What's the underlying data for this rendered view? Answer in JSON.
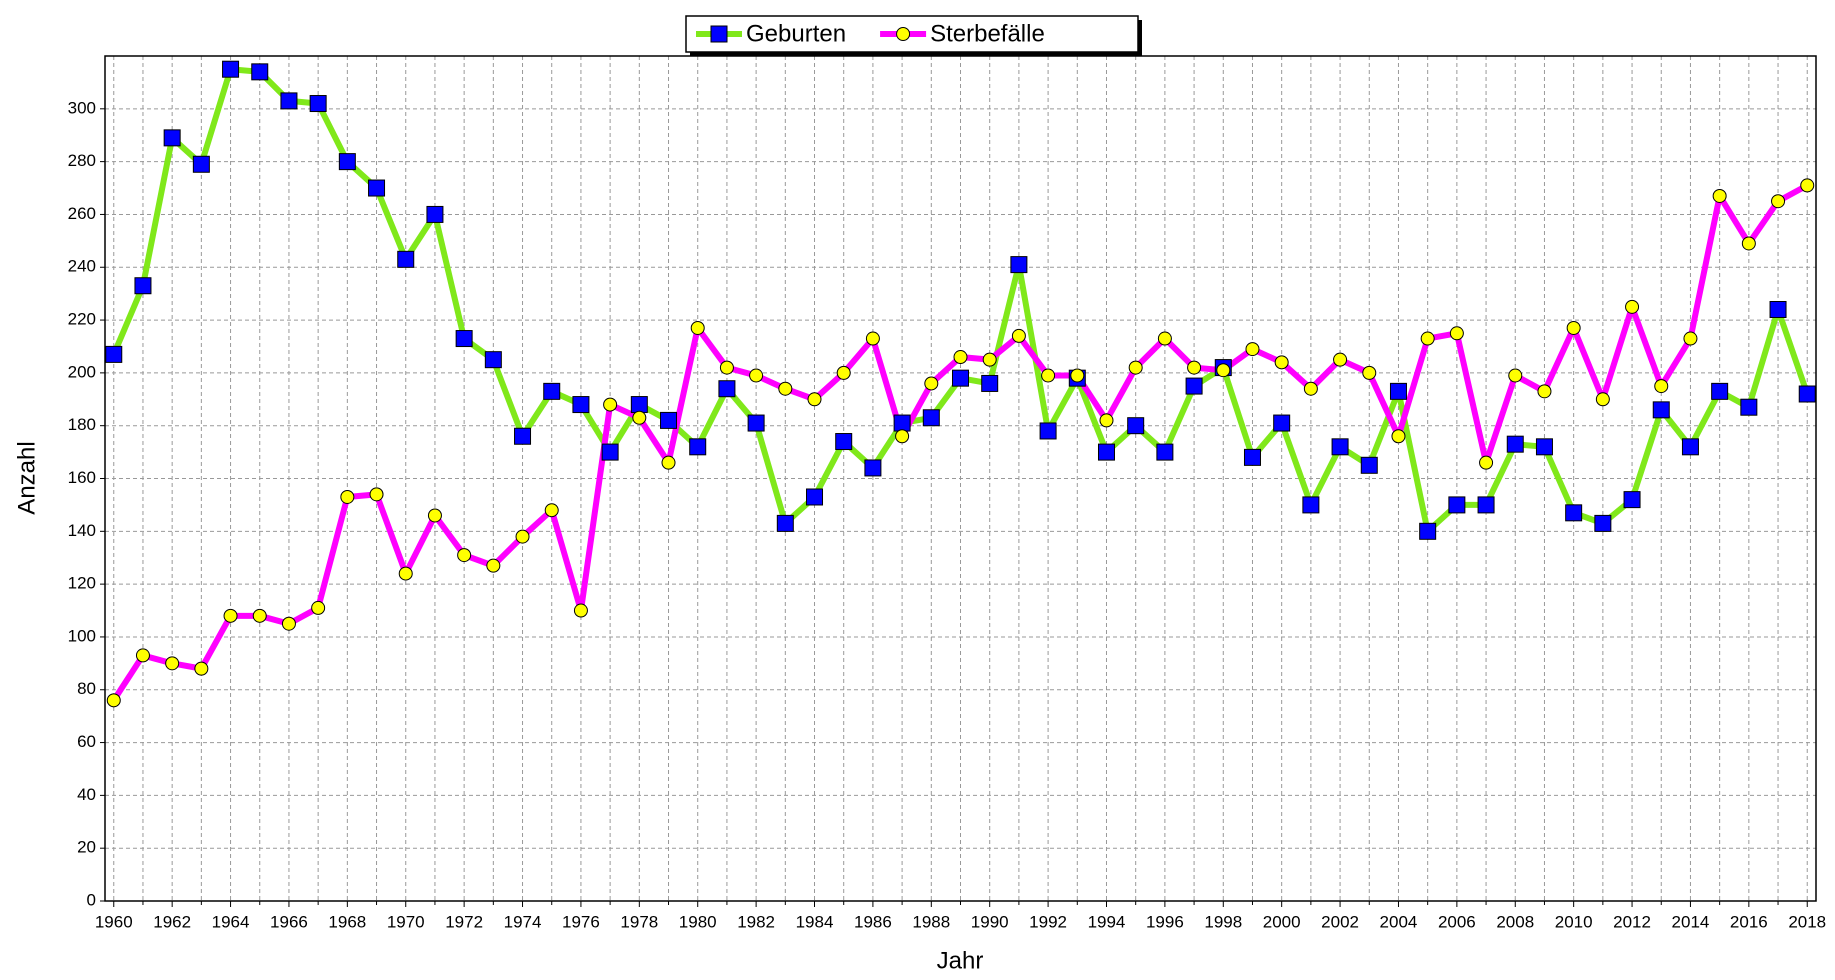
{
  "chart_data": {
    "type": "line",
    "x_label": "Jahr",
    "y_label": "Anzahl",
    "x": [
      1960,
      1961,
      1962,
      1963,
      1964,
      1965,
      1966,
      1967,
      1968,
      1969,
      1970,
      1971,
      1972,
      1973,
      1974,
      1975,
      1976,
      1977,
      1978,
      1979,
      1980,
      1981,
      1982,
      1983,
      1984,
      1985,
      1986,
      1987,
      1988,
      1989,
      1990,
      1991,
      1992,
      1993,
      1994,
      1995,
      1996,
      1997,
      1998,
      1999,
      2000,
      2001,
      2002,
      2003,
      2004,
      2005,
      2006,
      2007,
      2008,
      2009,
      2010,
      2011,
      2012,
      2013,
      2014,
      2015,
      2016,
      2017,
      2018
    ],
    "series": [
      {
        "name": "Geburten",
        "color": "#80e81a",
        "marker": "square",
        "marker_color": "#0000ff",
        "values": [
          207,
          233,
          289,
          279,
          315,
          314,
          303,
          302,
          280,
          270,
          243,
          260,
          213,
          205,
          176,
          193,
          188,
          170,
          188,
          182,
          172,
          194,
          181,
          143,
          153,
          174,
          164,
          181,
          183,
          198,
          196,
          241,
          178,
          198,
          170,
          180,
          170,
          195,
          202,
          168,
          181,
          150,
          172,
          165,
          193,
          140,
          150,
          150,
          173,
          172,
          147,
          143,
          152,
          186,
          172,
          193,
          187,
          224,
          192
        ]
      },
      {
        "name": "Sterbefälle",
        "color": "#ff00ff",
        "marker": "circle",
        "marker_color": "#ffff00",
        "values": [
          76,
          93,
          90,
          88,
          108,
          108,
          105,
          111,
          153,
          154,
          124,
          146,
          131,
          127,
          138,
          148,
          110,
          188,
          183,
          166,
          217,
          202,
          199,
          194,
          190,
          200,
          213,
          176,
          196,
          206,
          205,
          214,
          199,
          199,
          182,
          202,
          213,
          202,
          201,
          209,
          204,
          194,
          205,
          200,
          176,
          213,
          215,
          166,
          199,
          193,
          217,
          190,
          225,
          195,
          213,
          267,
          249,
          265,
          271
        ]
      }
    ],
    "xlim": [
      1959.7,
      2018.3
    ],
    "xticks": [
      1960,
      1962,
      1964,
      1966,
      1968,
      1970,
      1972,
      1974,
      1976,
      1978,
      1980,
      1982,
      1984,
      1986,
      1988,
      1990,
      1992,
      1994,
      1996,
      1998,
      2000,
      2002,
      2004,
      2006,
      2008,
      2010,
      2012,
      2014,
      2016,
      2018
    ],
    "x_minor_ticks": [
      1961,
      1963,
      1965,
      1967,
      1969,
      1971,
      1973,
      1975,
      1977,
      1979,
      1981,
      1983,
      1985,
      1987,
      1989,
      1991,
      1993,
      1995,
      1997,
      1999,
      2001,
      2003,
      2005,
      2007,
      2009,
      2011,
      2013,
      2015,
      2017
    ],
    "ylim": [
      0,
      320
    ],
    "yticks": [
      0,
      20,
      40,
      60,
      80,
      100,
      120,
      140,
      160,
      180,
      200,
      220,
      240,
      260,
      280,
      300
    ],
    "grid": true,
    "legend": "top"
  }
}
